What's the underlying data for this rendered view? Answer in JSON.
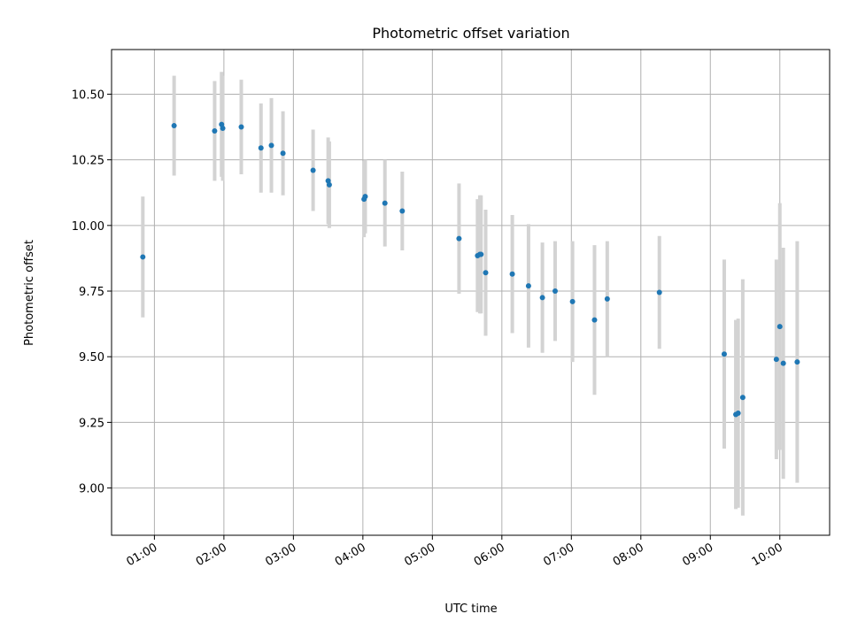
{
  "chart_data": {
    "type": "scatter",
    "title": "Photometric offset variation",
    "xlabel": "UTC time",
    "ylabel": "Photometric offset",
    "grid": true,
    "xlim": [
      "00:23",
      "10:43"
    ],
    "ylim": [
      8.82,
      10.67
    ],
    "xticks": [
      "01:00",
      "02:00",
      "03:00",
      "04:00",
      "05:00",
      "06:00",
      "07:00",
      "08:00",
      "09:00",
      "10:00"
    ],
    "yticks": [
      "9.00",
      "9.25",
      "9.50",
      "9.75",
      "10.00",
      "10.25",
      "10.50"
    ],
    "point_color": "#1f77b4",
    "errorbar_color": "#d3d3d3",
    "series": [
      {
        "points": [
          {
            "x": "00:50",
            "y": 9.88,
            "err": 0.23
          },
          {
            "x": "01:17",
            "y": 10.38,
            "err": 0.19
          },
          {
            "x": "01:52",
            "y": 10.36,
            "err": 0.19
          },
          {
            "x": "01:58",
            "y": 10.385,
            "err": 0.2
          },
          {
            "x": "01:59",
            "y": 10.37,
            "err": 0.2
          },
          {
            "x": "02:15",
            "y": 10.375,
            "err": 0.18
          },
          {
            "x": "02:32",
            "y": 10.295,
            "err": 0.17
          },
          {
            "x": "02:41",
            "y": 10.305,
            "err": 0.18
          },
          {
            "x": "02:51",
            "y": 10.275,
            "err": 0.16
          },
          {
            "x": "03:17",
            "y": 10.21,
            "err": 0.155
          },
          {
            "x": "03:30",
            "y": 10.17,
            "err": 0.165
          },
          {
            "x": "03:31",
            "y": 10.155,
            "err": 0.165
          },
          {
            "x": "04:01",
            "y": 10.1,
            "err": 0.145
          },
          {
            "x": "04:02",
            "y": 10.11,
            "err": 0.14
          },
          {
            "x": "04:19",
            "y": 10.085,
            "err": 0.165
          },
          {
            "x": "04:34",
            "y": 10.055,
            "err": 0.15
          },
          {
            "x": "05:23",
            "y": 9.95,
            "err": 0.21
          },
          {
            "x": "05:39",
            "y": 9.885,
            "err": 0.215
          },
          {
            "x": "05:41",
            "y": 9.89,
            "err": 0.225
          },
          {
            "x": "05:42",
            "y": 9.89,
            "err": 0.225
          },
          {
            "x": "05:46",
            "y": 9.82,
            "err": 0.24
          },
          {
            "x": "06:09",
            "y": 9.815,
            "err": 0.225
          },
          {
            "x": "06:23",
            "y": 9.77,
            "err": 0.235
          },
          {
            "x": "06:35",
            "y": 9.725,
            "err": 0.21
          },
          {
            "x": "06:46",
            "y": 9.75,
            "err": 0.19
          },
          {
            "x": "07:01",
            "y": 9.71,
            "err": 0.23
          },
          {
            "x": "07:20",
            "y": 9.64,
            "err": 0.285
          },
          {
            "x": "07:31",
            "y": 9.72,
            "err": 0.22
          },
          {
            "x": "08:16",
            "y": 9.745,
            "err": 0.215
          },
          {
            "x": "09:12",
            "y": 9.51,
            "err": 0.36
          },
          {
            "x": "09:22",
            "y": 9.28,
            "err": 0.36
          },
          {
            "x": "09:24",
            "y": 9.285,
            "err": 0.36
          },
          {
            "x": "09:28",
            "y": 9.345,
            "err": 0.45
          },
          {
            "x": "09:57",
            "y": 9.49,
            "err": 0.38
          },
          {
            "x": "10:00",
            "y": 9.615,
            "err": 0.47
          },
          {
            "x": "10:03",
            "y": 9.475,
            "err": 0.44
          },
          {
            "x": "10:15",
            "y": 9.48,
            "err": 0.46
          }
        ]
      }
    ]
  }
}
